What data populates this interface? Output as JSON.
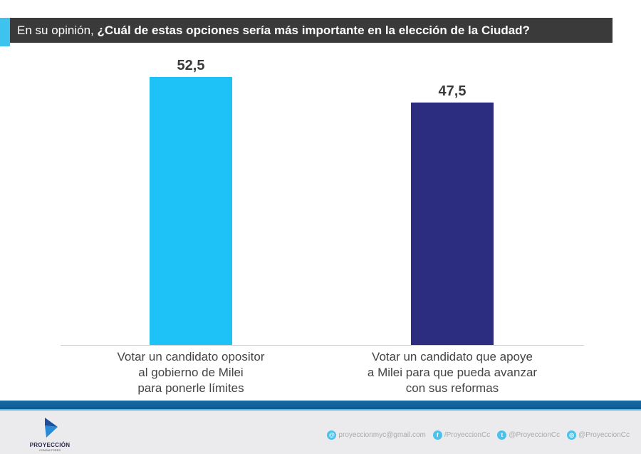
{
  "header": {
    "prefix": "En su opinión, ",
    "question": "¿Cuál de estas opciones sería más importante en la elección de la Ciudad?"
  },
  "chart_data": {
    "type": "bar",
    "categories": [
      "Votar un candidato opositor al gobierno de Milei para ponerle límites",
      "Votar un candidato que apoye a Milei para que pueda avanzar con sus reformas"
    ],
    "category_lines": [
      [
        "Votar un candidato opositor",
        "al gobierno de Milei",
        "para ponerle límites"
      ],
      [
        "Votar un candidato que apoye",
        "a Milei para que pueda avanzar",
        "con sus reformas"
      ]
    ],
    "values": [
      52.5,
      47.5
    ],
    "value_labels": [
      "52,5",
      "47,5"
    ],
    "colors": [
      "#1fc2f6",
      "#2c2c80"
    ],
    "ylim": [
      0,
      52.5
    ],
    "grid": false
  },
  "footer": {
    "logo_name": "PROYECCIÓN",
    "logo_sub": "CONSULTORES",
    "contacts": [
      {
        "icon": "email-icon",
        "text": "proyeccionmyc@gmail.com"
      },
      {
        "icon": "facebook-icon",
        "text": "/ProyeccionCc"
      },
      {
        "icon": "twitter-icon",
        "text": "@ProyeccionCc"
      },
      {
        "icon": "instagram-icon",
        "text": "@ProyeccionCc"
      }
    ]
  }
}
